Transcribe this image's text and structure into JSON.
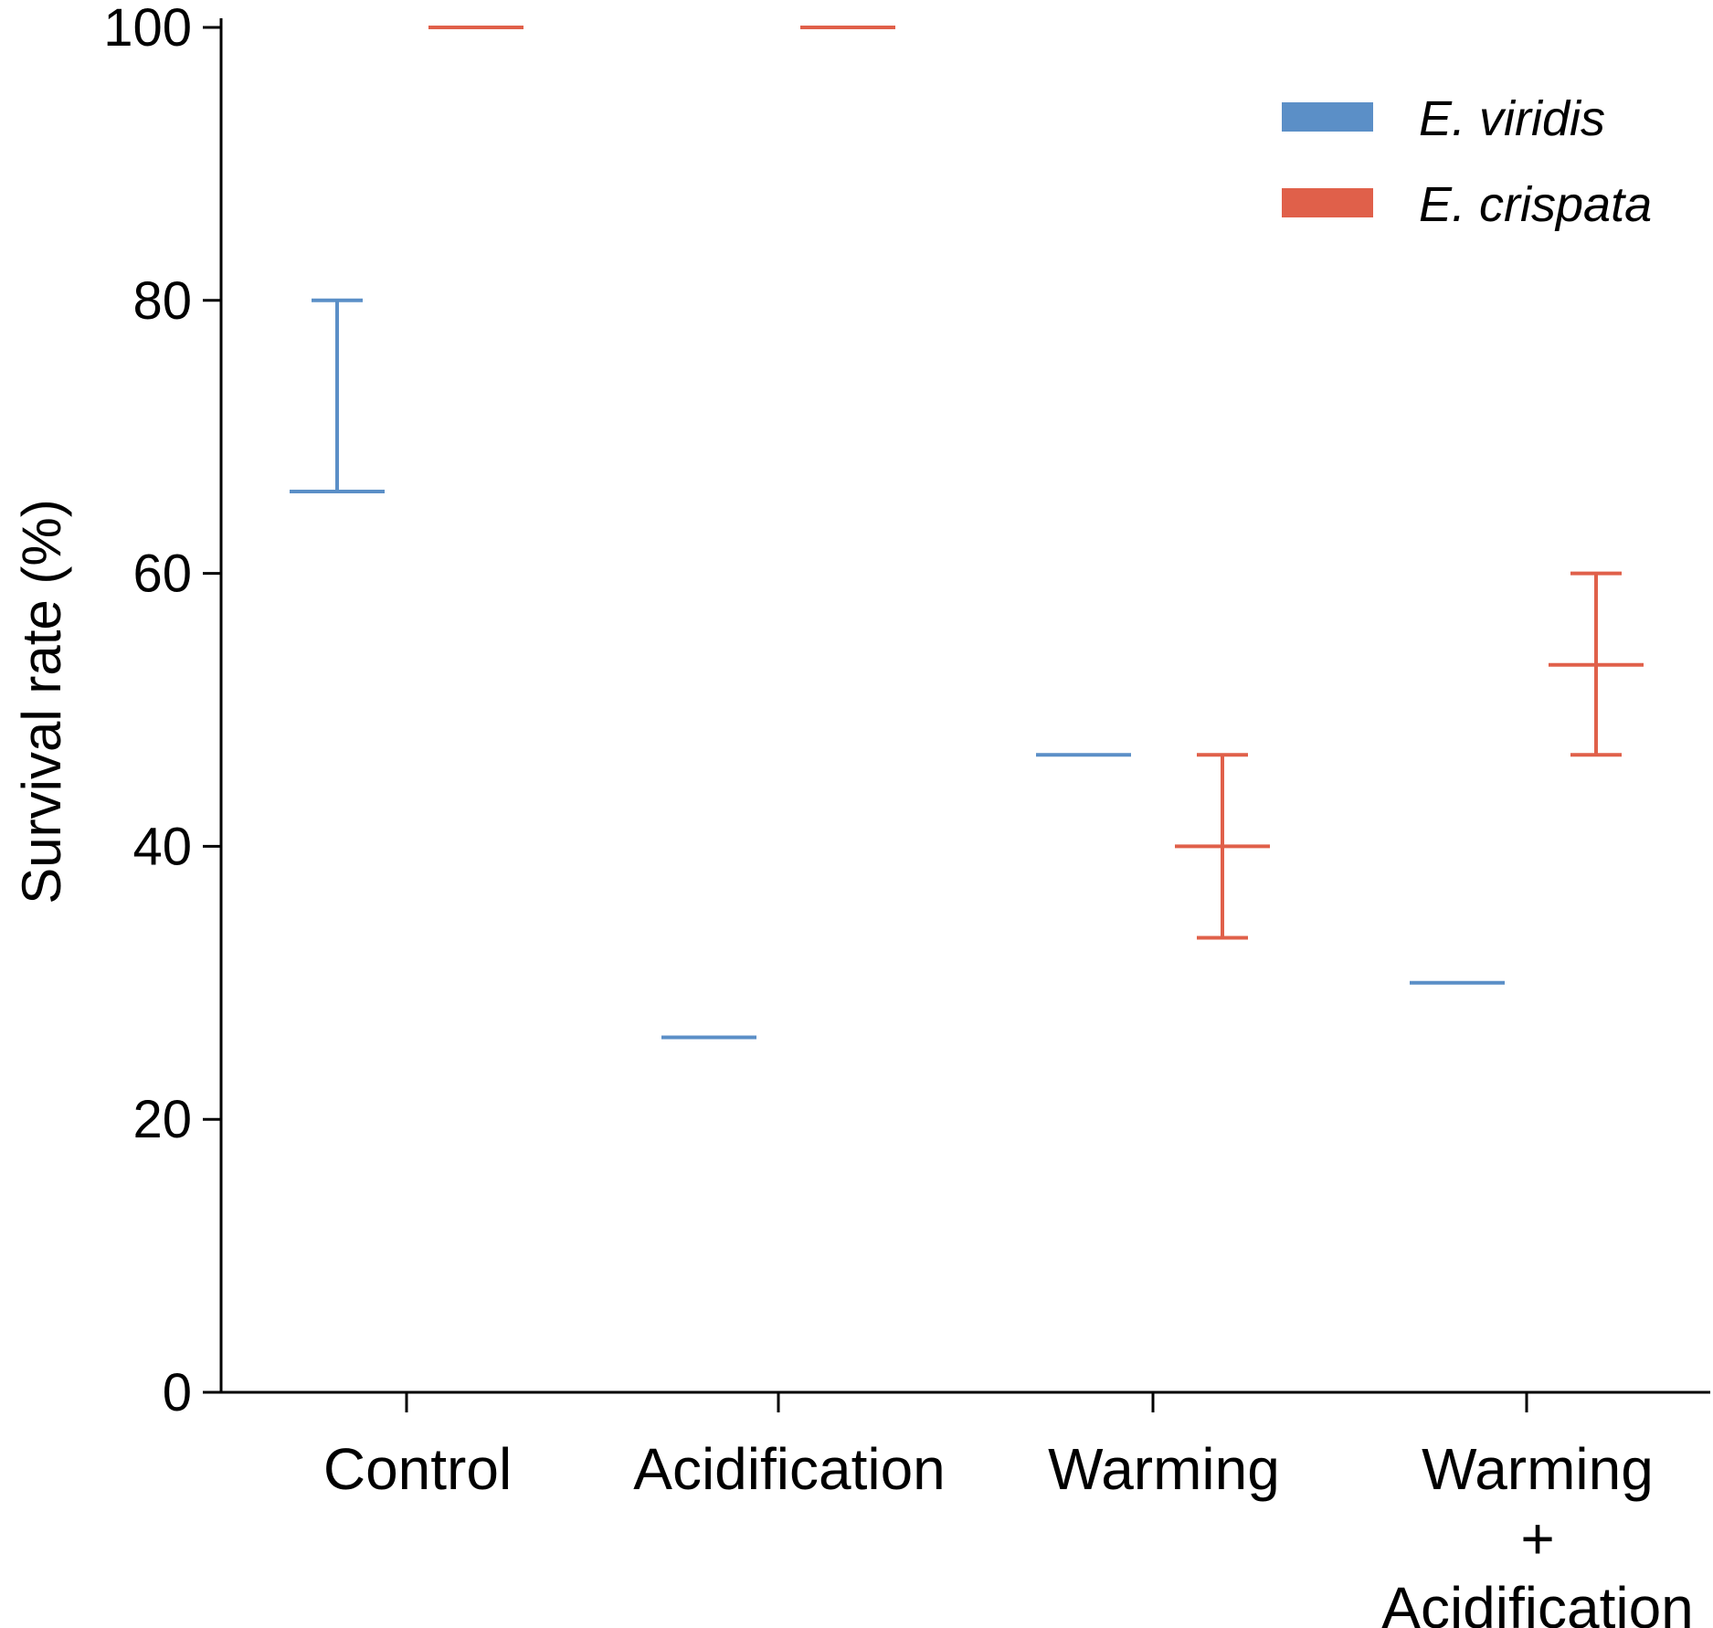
{
  "chart_data": {
    "type": "errorbar",
    "title": "",
    "xlabel": "",
    "ylabel": "Survival rate (%)",
    "ylim": [
      0,
      100
    ],
    "yticks": [
      0,
      20,
      40,
      60,
      80,
      100
    ],
    "categories": [
      [
        "Control"
      ],
      [
        "Acidification"
      ],
      [
        "Warming"
      ],
      [
        "Warming",
        "+",
        "Acidification"
      ]
    ],
    "series": [
      {
        "name": "E. viridis",
        "color": "#5b8fc7",
        "mean": [
          66,
          26,
          46.7,
          30
        ],
        "err_low": [
          66,
          26,
          46.7,
          30
        ],
        "err_high": [
          80,
          26,
          46.7,
          30
        ]
      },
      {
        "name": "E. crispata",
        "color": "#e0604a",
        "mean": [
          100,
          100,
          40,
          53.3
        ],
        "err_low": [
          100,
          100,
          33.3,
          46.7
        ],
        "err_high": [
          100,
          100,
          46.7,
          60
        ]
      }
    ],
    "legend": {
      "placement": "top-right"
    }
  }
}
